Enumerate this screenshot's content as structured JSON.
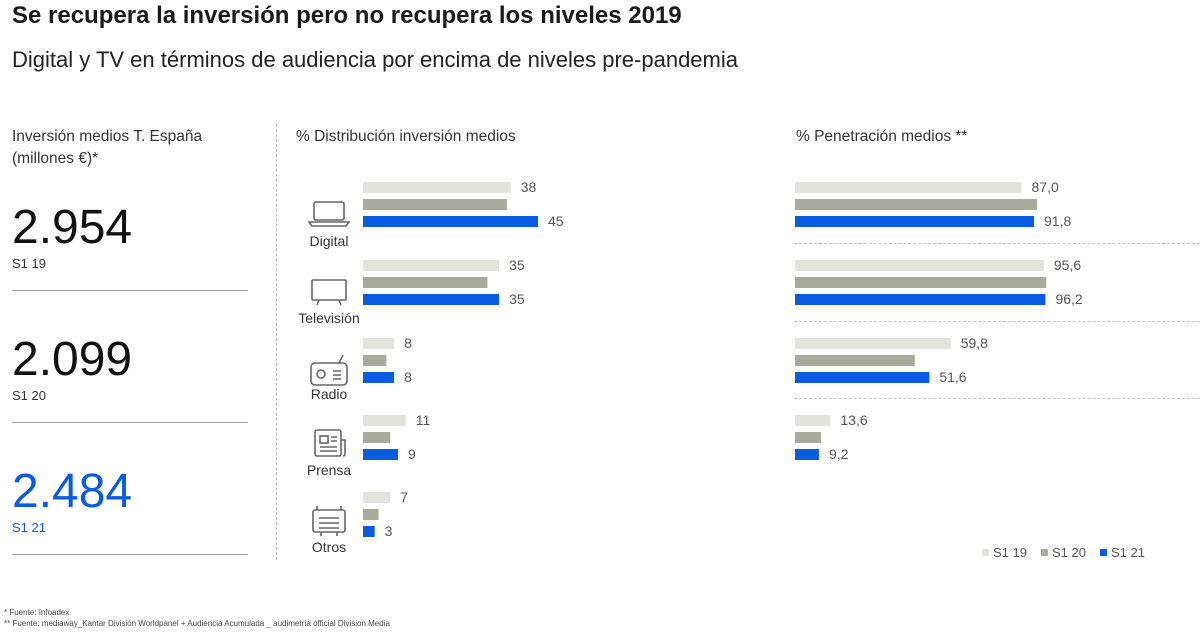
{
  "title": "Se recupera la inversión pero no recupera los niveles 2019",
  "subtitle": "Digital y TV en términos de audiencia por encima de niveles pre-pandemia",
  "totals": {
    "label": "Inversión medios T. España (millones €)*",
    "items": [
      {
        "value": "2.954",
        "period": "S1 19",
        "color": "#111111"
      },
      {
        "value": "2.099",
        "period": "S1 20",
        "color": "#111111"
      },
      {
        "value": "2.484",
        "period": "S1 21",
        "color": "#0a5ce0"
      }
    ]
  },
  "chart_data": [
    {
      "type": "bar",
      "title": "% Distribución inversión medios",
      "categories": [
        "Digital",
        "Televisión",
        "Radio",
        "Prensa",
        "Otros"
      ],
      "series": [
        {
          "name": "S1 19",
          "values": [
            38,
            35,
            8,
            11,
            7
          ],
          "labels": [
            "38",
            "35",
            "8",
            "11",
            "7"
          ]
        },
        {
          "name": "S1 20",
          "values": [
            37,
            32,
            6,
            7,
            4
          ],
          "labels": [
            "",
            "",
            "",
            "",
            ""
          ]
        },
        {
          "name": "S1 21",
          "values": [
            45,
            35,
            8,
            9,
            3
          ],
          "labels": [
            "45",
            "35",
            "8",
            "9",
            "3"
          ]
        }
      ]
    },
    {
      "type": "bar",
      "title": "% Penetración medios **",
      "categories": [
        "Digital",
        "Televisión",
        "Radio",
        "Prensa"
      ],
      "series": [
        {
          "name": "S1 19",
          "values": [
            87.0,
            95.6,
            59.8,
            13.6
          ],
          "labels": [
            "87,0",
            "95,6",
            "59,8",
            "13,6"
          ]
        },
        {
          "name": "S1 20",
          "values": [
            93,
            96.5,
            46,
            10
          ],
          "labels": [
            "",
            "",
            "",
            ""
          ]
        },
        {
          "name": "S1 21",
          "values": [
            91.8,
            96.2,
            51.6,
            9.2
          ],
          "labels": [
            "91,8",
            "96,2",
            "51,6",
            "9,2"
          ]
        }
      ]
    }
  ],
  "colors": {
    "S1 19": "#e3e3dd",
    "S1 20": "#a8aa9c",
    "S1 21": "#0a5ce0"
  },
  "icons": [
    "laptop-icon",
    "tv-icon",
    "radio-icon",
    "newspaper-icon",
    "other-device-icon"
  ],
  "legend": [
    "S1 19",
    "S1 20",
    "S1 21"
  ],
  "footnotes": [
    "* Fuente: Infoadex",
    "** Fuente: mediaway_Kantar División Worldpanel + Audiencia Acumulada _ audimetría official Division Media"
  ]
}
